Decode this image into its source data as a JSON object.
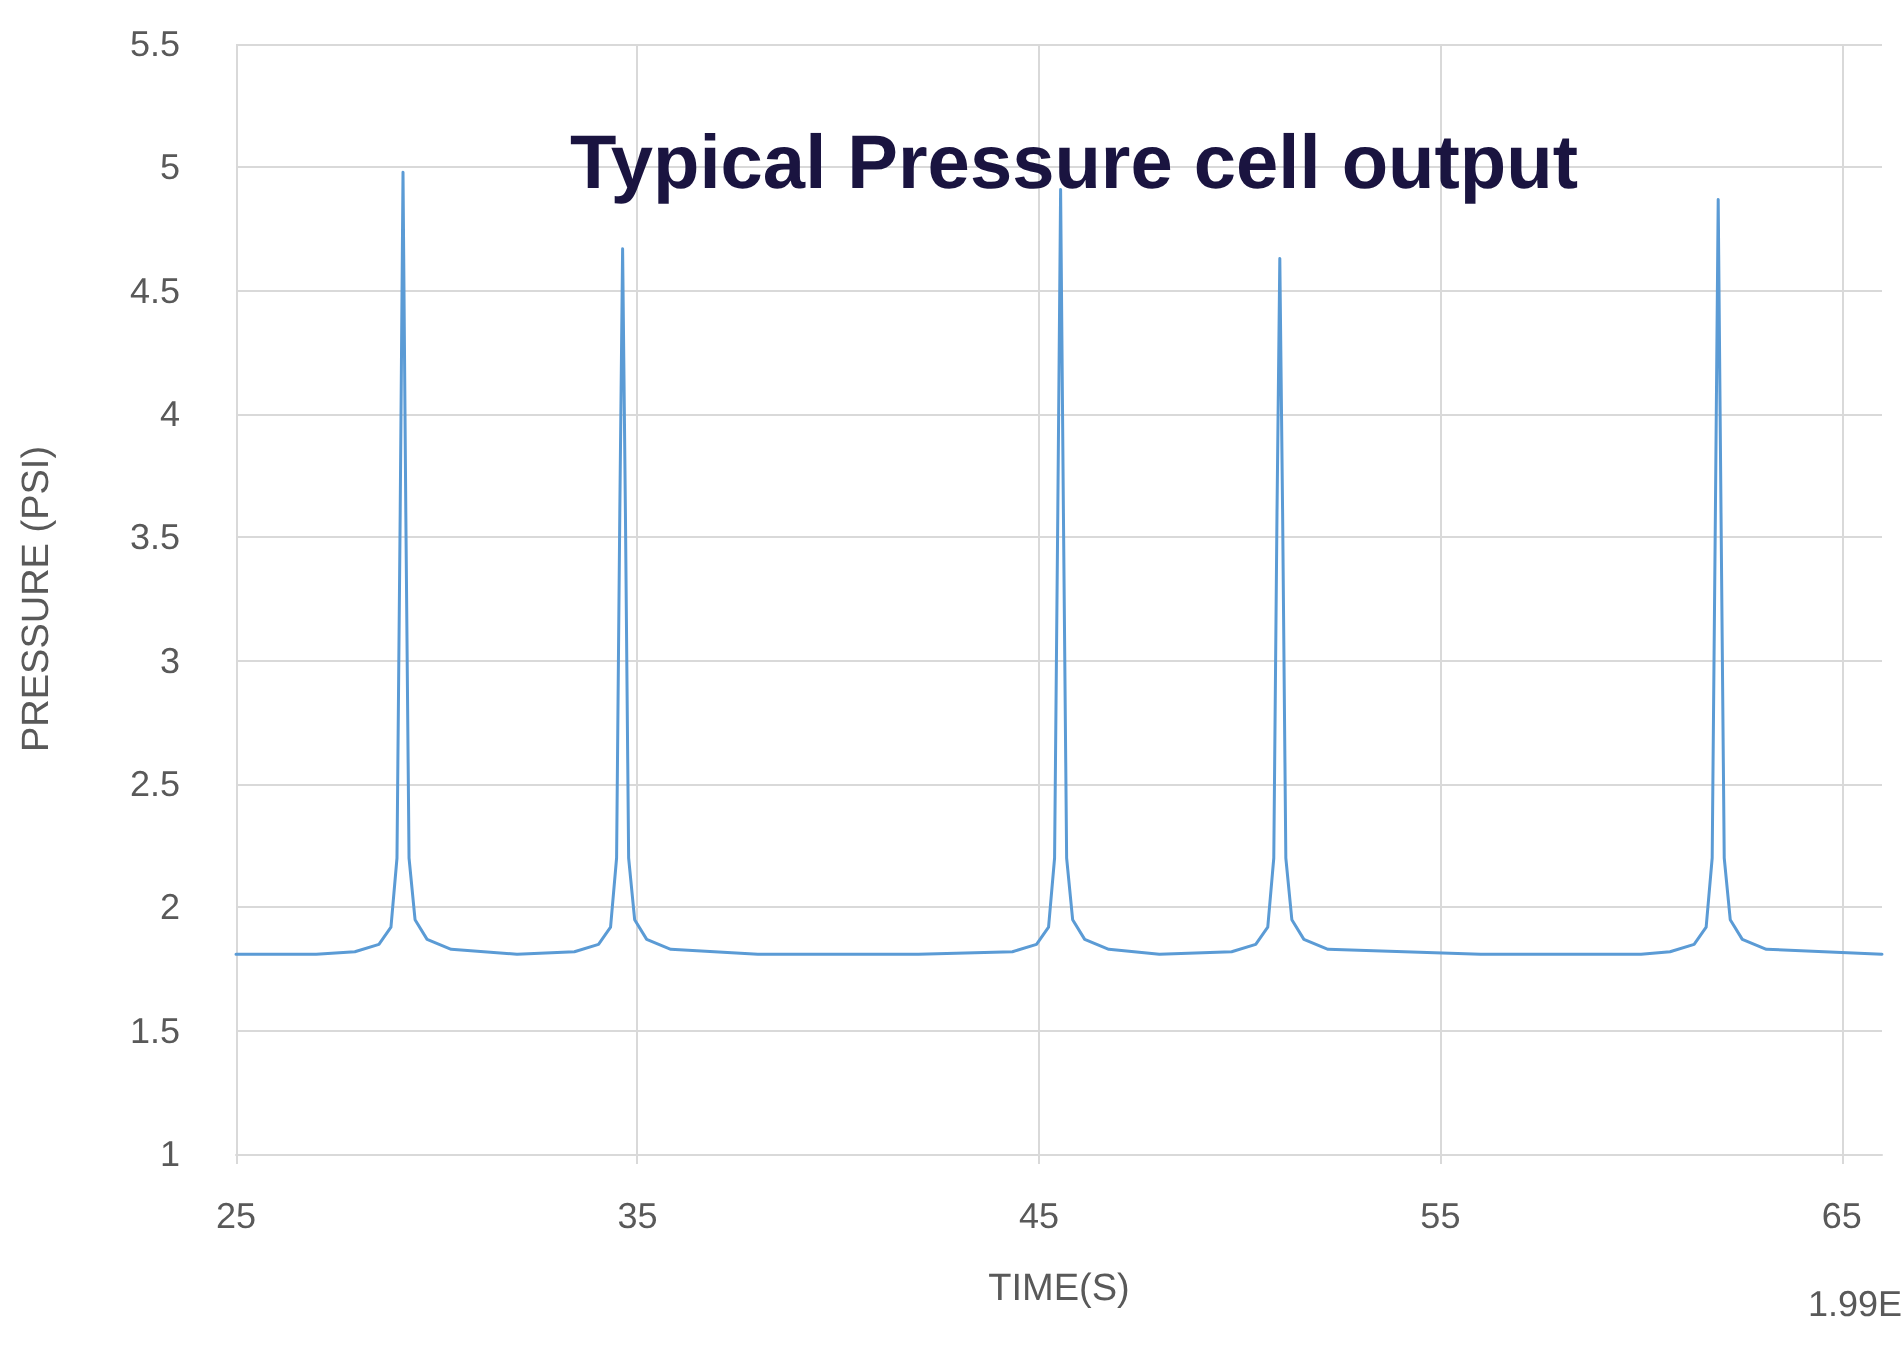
{
  "chart_data": {
    "type": "line",
    "title": "Typical Pressure cell output",
    "xlabel": "TIME(S)",
    "ylabel": "PRESSURE (PSI)",
    "annotations": [
      "1.99E"
    ],
    "x": [
      25,
      27,
      27.96,
      28.56,
      28.86,
      29.01,
      29.09,
      29.16,
      29.23,
      29.31,
      29.46,
      29.76,
      30.36,
      32,
      33.43,
      34.03,
      34.33,
      34.48,
      34.56,
      34.63,
      34.7,
      34.78,
      34.93,
      35.23,
      35.83,
      38,
      42,
      44.34,
      44.94,
      45.24,
      45.39,
      45.47,
      45.54,
      45.61,
      45.69,
      45.84,
      46.14,
      46.74,
      48,
      49.8,
      50.4,
      50.7,
      50.85,
      50.93,
      51,
      51.07,
      51.15,
      51.3,
      51.6,
      52.2,
      56,
      60,
      60.72,
      61.32,
      61.62,
      61.77,
      61.85,
      61.92,
      61.99,
      62.07,
      62.22,
      62.52,
      63.12,
      66
    ],
    "series": [
      {
        "color": "#5b9bd5",
        "values": [
          1.81,
          1.81,
          1.82,
          1.85,
          1.92,
          2.2,
          3.6,
          4.98,
          3.6,
          2.2,
          1.95,
          1.87,
          1.83,
          1.81,
          1.82,
          1.85,
          1.92,
          2.2,
          3.6,
          4.67,
          3.6,
          2.2,
          1.95,
          1.87,
          1.83,
          1.81,
          1.81,
          1.82,
          1.85,
          1.92,
          2.2,
          3.6,
          4.91,
          3.6,
          2.2,
          1.95,
          1.87,
          1.83,
          1.81,
          1.82,
          1.85,
          1.92,
          2.2,
          3.6,
          4.63,
          3.6,
          2.2,
          1.95,
          1.87,
          1.83,
          1.81,
          1.81,
          1.82,
          1.85,
          1.92,
          2.2,
          3.6,
          4.87,
          3.6,
          2.2,
          1.95,
          1.87,
          1.83,
          1.81
        ]
      }
    ],
    "xlim": [
      25,
      66
    ],
    "xticks": [
      25,
      35,
      45,
      55,
      65
    ],
    "ylim": [
      1,
      5.5
    ],
    "yticks": [
      1,
      1.5,
      2,
      2.5,
      3,
      3.5,
      4,
      4.5,
      5,
      5.5
    ],
    "grid": true,
    "marker": "none",
    "line_style": "solid"
  }
}
